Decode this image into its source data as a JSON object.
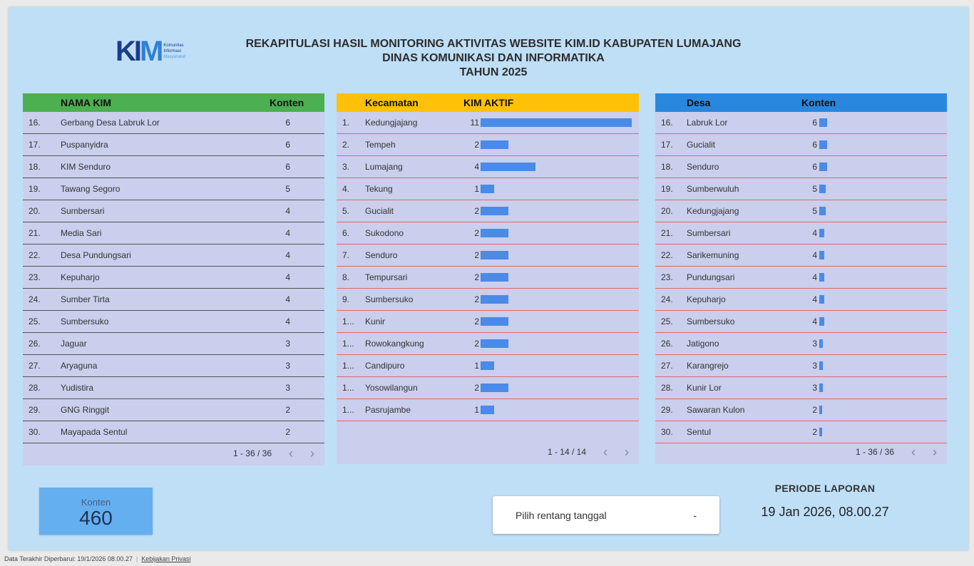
{
  "header": {
    "logo_text": "KIM",
    "logo_sub": [
      "Komunitas",
      "Informasi",
      "Masyarakat"
    ],
    "title_lines": [
      "REKAPITULASI HASIL MONITORING AKTIVITAS WEBSITE KIM.ID KABUPATEN LUMAJANG",
      "DINAS KOMUNIKASI DAN INFORMATIKA",
      "TAHUN 2025"
    ]
  },
  "kim_table": {
    "col_name": "NAMA KIM",
    "col_value": "Konten",
    "rows": [
      {
        "num": "16.",
        "name": "Gerbang Desa Labruk Lor",
        "value": "6"
      },
      {
        "num": "17.",
        "name": "Puspanyidra",
        "value": "6"
      },
      {
        "num": "18.",
        "name": "KIM Senduro",
        "value": "6"
      },
      {
        "num": "19.",
        "name": "Tawang Segoro",
        "value": "5"
      },
      {
        "num": "20.",
        "name": "Sumbersari",
        "value": "4"
      },
      {
        "num": "21.",
        "name": "Media Sari",
        "value": "4"
      },
      {
        "num": "22.",
        "name": "Desa Pundungsari",
        "value": "4"
      },
      {
        "num": "23.",
        "name": "Kepuharjo",
        "value": "4"
      },
      {
        "num": "24.",
        "name": "Sumber Tirta",
        "value": "4"
      },
      {
        "num": "25.",
        "name": "Sumbersuko",
        "value": "4"
      },
      {
        "num": "26.",
        "name": "Jaguar",
        "value": "3"
      },
      {
        "num": "27.",
        "name": "Aryaguna",
        "value": "3"
      },
      {
        "num": "28.",
        "name": "Yudistira",
        "value": "3"
      },
      {
        "num": "29.",
        "name": "GNG Ringgit",
        "value": "2"
      },
      {
        "num": "30.",
        "name": "Mayapada Sentul",
        "value": "2"
      }
    ],
    "pager": "1 - 36 / 36"
  },
  "kecamatan_table": {
    "col_name": "Kecamatan",
    "col_value": "KIM AKTIF",
    "max": 11,
    "rows": [
      {
        "num": "1.",
        "name": "Kedungjajang",
        "value": 11
      },
      {
        "num": "2.",
        "name": "Tempeh",
        "value": 2
      },
      {
        "num": "3.",
        "name": "Lumajang",
        "value": 4
      },
      {
        "num": "4.",
        "name": "Tekung",
        "value": 1
      },
      {
        "num": "5.",
        "name": "Gucialit",
        "value": 2
      },
      {
        "num": "6.",
        "name": "Sukodono",
        "value": 2
      },
      {
        "num": "7.",
        "name": "Senduro",
        "value": 2
      },
      {
        "num": "8.",
        "name": "Tempursari",
        "value": 2
      },
      {
        "num": "9.",
        "name": "Sumbersuko",
        "value": 2
      },
      {
        "num": "1...",
        "name": "Kunir",
        "value": 2
      },
      {
        "num": "1...",
        "name": "Rowokangkung",
        "value": 2
      },
      {
        "num": "1...",
        "name": "Candipuro",
        "value": 1
      },
      {
        "num": "1...",
        "name": "Yosowilangun",
        "value": 2
      },
      {
        "num": "1...",
        "name": "Pasrujambe",
        "value": 1
      }
    ],
    "pager": "1 - 14 / 14"
  },
  "desa_table": {
    "col_name": "Desa",
    "col_value": "Konten",
    "max": 60,
    "rows": [
      {
        "num": "16.",
        "name": "Labruk Lor",
        "value": 6
      },
      {
        "num": "17.",
        "name": "Gucialit",
        "value": 6
      },
      {
        "num": "18.",
        "name": "Senduro",
        "value": 6
      },
      {
        "num": "19.",
        "name": "Sumberwuluh",
        "value": 5
      },
      {
        "num": "20.",
        "name": "Kedungjajang",
        "value": 5
      },
      {
        "num": "21.",
        "name": "Sumbersari",
        "value": 4
      },
      {
        "num": "22.",
        "name": "Sarikemuning",
        "value": 4
      },
      {
        "num": "23.",
        "name": "Pundungsari",
        "value": 4
      },
      {
        "num": "24.",
        "name": "Kepuharjo",
        "value": 4
      },
      {
        "num": "25.",
        "name": "Sumbersuko",
        "value": 4
      },
      {
        "num": "26.",
        "name": "Jatigono",
        "value": 3
      },
      {
        "num": "27.",
        "name": "Karangrejo",
        "value": 3
      },
      {
        "num": "28.",
        "name": "Kunir Lor",
        "value": 3
      },
      {
        "num": "29.",
        "name": "Sawaran Kulon",
        "value": 2
      },
      {
        "num": "30.",
        "name": "Sentul",
        "value": 2
      }
    ],
    "pager": "1 - 36 / 36"
  },
  "scorecard": {
    "label": "Konten",
    "value": "460"
  },
  "date_picker": {
    "label": "Pilih rentang tanggal",
    "caret": "-"
  },
  "periode": {
    "label": "PERIODE LAPORAN",
    "value": "19 Jan 2026, 08.00.27"
  },
  "footer": {
    "updated": "Data Terakhir Diperbarui: 19/1/2026 08.00.27",
    "privacy": "Kebijakan Privasi"
  },
  "colors": {
    "bar": "#4a8ae8",
    "kim_header": "#4caf50",
    "kec_header": "#ffc107",
    "desa_header": "#2a87de",
    "background": "#bfdff7"
  },
  "icons": {
    "prev": "chevron-left-icon",
    "next": "chevron-right-icon"
  }
}
